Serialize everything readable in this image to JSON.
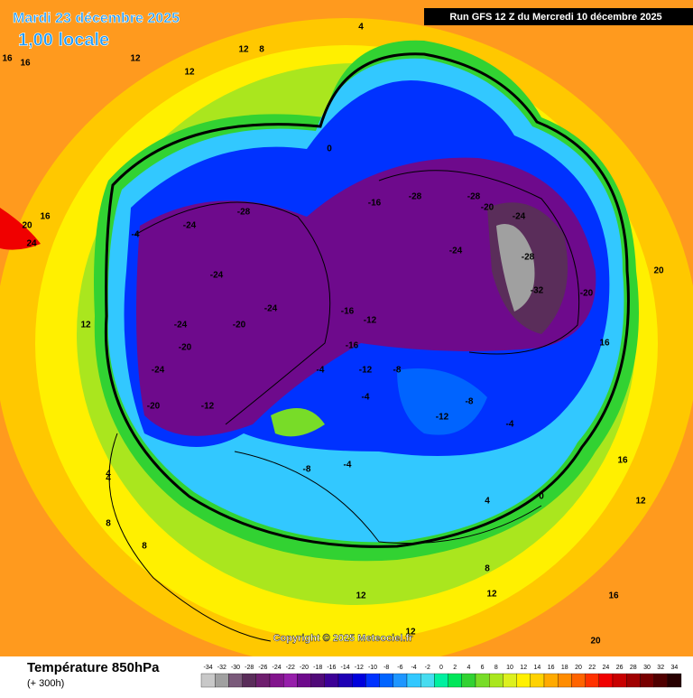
{
  "header": {
    "date": "Mardi 23 décembre 2025",
    "time": "1,00 locale",
    "run": "Run GFS 12 Z du Mercredi 10 décembre 2025"
  },
  "copyright": "Copyright © 2025 Meteociel.fr",
  "legend": {
    "title": "Température 850hPa",
    "subtitle": "(+ 300h)",
    "stops": [
      {
        "value": -34,
        "color": "#c8c8c8"
      },
      {
        "value": -32,
        "color": "#a0a0a0"
      },
      {
        "value": -30,
        "color": "#7a5a7a"
      },
      {
        "value": -28,
        "color": "#5a2d5a"
      },
      {
        "value": -26,
        "color": "#6e1e6e"
      },
      {
        "value": -24,
        "color": "#82148c"
      },
      {
        "value": -22,
        "color": "#961eaa"
      },
      {
        "value": -20,
        "color": "#6e0a8c"
      },
      {
        "value": -18,
        "color": "#500a78"
      },
      {
        "value": -16,
        "color": "#3c0096"
      },
      {
        "value": -14,
        "color": "#1e00b4"
      },
      {
        "value": -12,
        "color": "#0000dc"
      },
      {
        "value": -10,
        "color": "#0032ff"
      },
      {
        "value": -8,
        "color": "#0064ff"
      },
      {
        "value": -6,
        "color": "#1e96ff"
      },
      {
        "value": -4,
        "color": "#32c8ff"
      },
      {
        "value": -2,
        "color": "#46dcf0"
      },
      {
        "value": 0,
        "color": "#00f0a0"
      },
      {
        "value": 2,
        "color": "#00e65a"
      },
      {
        "value": 4,
        "color": "#32d232"
      },
      {
        "value": 6,
        "color": "#78dc28"
      },
      {
        "value": 8,
        "color": "#aae61e"
      },
      {
        "value": 10,
        "color": "#dcf01e"
      },
      {
        "value": 12,
        "color": "#fff000"
      },
      {
        "value": 14,
        "color": "#ffd200"
      },
      {
        "value": 16,
        "color": "#ffaa00"
      },
      {
        "value": 18,
        "color": "#ff8c00"
      },
      {
        "value": 20,
        "color": "#ff6400"
      },
      {
        "value": 22,
        "color": "#ff3200"
      },
      {
        "value": 24,
        "color": "#f00000"
      },
      {
        "value": 26,
        "color": "#c80000"
      },
      {
        "value": 28,
        "color": "#a00000"
      },
      {
        "value": 30,
        "color": "#780000"
      },
      {
        "value": 32,
        "color": "#500000"
      },
      {
        "value": 34,
        "color": "#280000"
      }
    ]
  },
  "map_labels": [
    16,
    16,
    12,
    12,
    12,
    8,
    4,
    20,
    24,
    16,
    12,
    8,
    4,
    -4,
    -12,
    -24,
    -24,
    -28,
    -24,
    -20,
    -24,
    -20,
    -24,
    -20,
    -16,
    -12,
    -16,
    -12,
    -8,
    -12,
    -4,
    -4,
    -8,
    -16,
    -28,
    -28,
    -24,
    -24,
    -20,
    -28,
    -32,
    -20,
    -8,
    -4,
    0,
    4,
    8,
    12,
    12,
    16,
    16,
    20,
    20,
    4,
    8,
    12,
    16,
    12,
    0,
    -4
  ]
}
